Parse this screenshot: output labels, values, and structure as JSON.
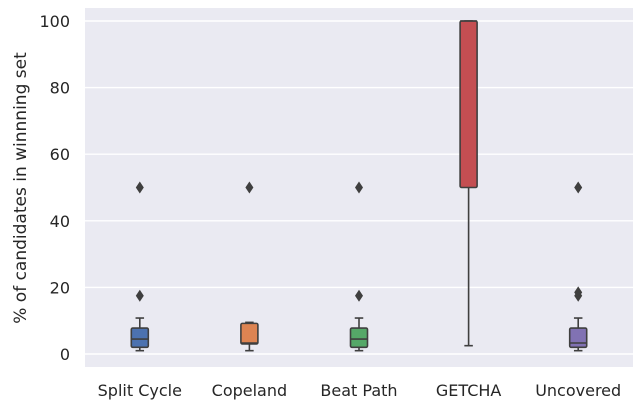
{
  "chart_data": {
    "type": "box",
    "title": "",
    "xlabel": "",
    "ylabel": "% of candidates in winnning set",
    "ylim": [
      -4,
      104
    ],
    "y_ticks": [
      0,
      20,
      40,
      60,
      80,
      100
    ],
    "grid": true,
    "background": "#eaeaf2",
    "categories": [
      "Split Cycle",
      "Copeland",
      "Beat Path",
      "GETCHA",
      "Uncovered"
    ],
    "boxes": [
      {
        "category": "Split Cycle",
        "color": "#4c72b0",
        "whisker_low": 1,
        "q1": 2,
        "median": 4.5,
        "q3": 7.8,
        "whisker_high": 10.8,
        "outliers": [
          17.5,
          50
        ]
      },
      {
        "category": "Copeland",
        "color": "#dd8452",
        "whisker_low": 1,
        "q1": 3,
        "median": 3.3,
        "q3": 9.2,
        "whisker_high": 9.5,
        "outliers": [
          50
        ]
      },
      {
        "category": "Beat Path",
        "color": "#55a868",
        "whisker_low": 1,
        "q1": 2,
        "median": 4.5,
        "q3": 7.8,
        "whisker_high": 10.8,
        "outliers": [
          17.5,
          50
        ]
      },
      {
        "category": "GETCHA",
        "color": "#c44e52",
        "whisker_low": 2.5,
        "q1": 50,
        "median": 100,
        "q3": 100,
        "whisker_high": 100,
        "outliers": []
      },
      {
        "category": "Uncovered",
        "color": "#8172b3",
        "whisker_low": 1,
        "q1": 2,
        "median": 3.3,
        "q3": 7.8,
        "whisker_high": 10.8,
        "outliers": [
          17.5,
          18.5,
          50
        ]
      }
    ]
  }
}
